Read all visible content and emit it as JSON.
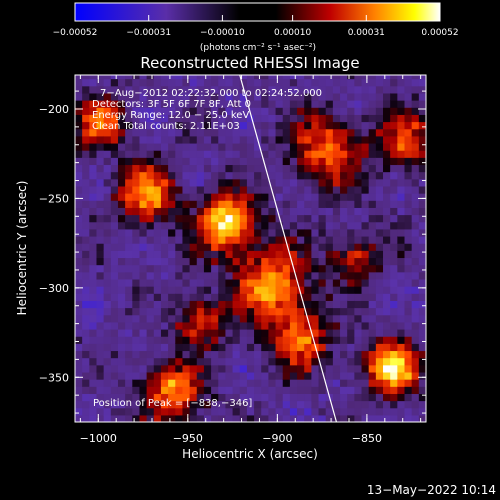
{
  "chart_data": {
    "type": "heatmap",
    "title": "Reconstructed RHESSI Image",
    "xlabel": "Heliocentric X (arcsec)",
    "ylabel": "Heliocentric Y (arcsec)",
    "xlim": [
      -1013,
      -817
    ],
    "ylim": [
      -375,
      -181
    ],
    "xticks": [
      -1000,
      -950,
      -900,
      -850
    ],
    "yticks": [
      -200,
      -250,
      -300,
      -350
    ],
    "xtick_labels": [
      "−1000",
      "−950",
      "−900",
      "−850"
    ],
    "ytick_labels": [
      "−200",
      "−250",
      "−300",
      "−350"
    ],
    "colorbar": {
      "min": -0.00052,
      "max": 0.00052,
      "ticks": [
        -0.00052,
        -0.00031,
        -0.0001,
        0.0001,
        0.00031,
        0.00052
      ],
      "tick_labels": [
        "−0.00052",
        "−0.00031",
        "−0.00010",
        "0.00010",
        "0.00031",
        "0.00052"
      ],
      "units_label": "(photons cm⁻² s⁻¹ asec⁻²)",
      "colors": [
        "#0000ff",
        "#5a2ea8",
        "#000000",
        "#c00000",
        "#ff8000",
        "#ffff00",
        "#ffffff"
      ]
    },
    "info_lines": [
      "7−Aug−2012 02:22:32.000 to 02:24:52.000",
      "Detectors: 3F 5F 6F 7F 8F, Att 0",
      "Energy Range: 12.0 − 25.0 keV",
      "Clean     Total counts: 2.11E+03"
    ],
    "peak_label": "Position of Peak = [−838,−346]",
    "peak": [
      -838,
      -346
    ],
    "limb_line": [
      [
        -921,
        -181
      ],
      [
        -867,
        -375
      ]
    ],
    "hot_spots": [
      {
        "x": -930,
        "y": -265,
        "amp": 1.0,
        "r": 12
      },
      {
        "x": -838,
        "y": -346,
        "amp": 1.0,
        "r": 11
      },
      {
        "x": -905,
        "y": -300,
        "amp": 0.85,
        "r": 14
      },
      {
        "x": -975,
        "y": -250,
        "amp": 0.75,
        "r": 12
      },
      {
        "x": -1000,
        "y": -210,
        "amp": 0.7,
        "r": 10
      },
      {
        "x": -875,
        "y": -225,
        "amp": 0.7,
        "r": 14
      },
      {
        "x": -960,
        "y": -360,
        "amp": 0.8,
        "r": 12
      },
      {
        "x": -890,
        "y": -330,
        "amp": 0.7,
        "r": 12
      },
      {
        "x": -830,
        "y": -220,
        "amp": 0.6,
        "r": 12
      },
      {
        "x": -945,
        "y": -320,
        "amp": 0.6,
        "r": 10
      },
      {
        "x": -860,
        "y": -285,
        "amp": 0.55,
        "r": 10
      }
    ]
  },
  "footer": {
    "timestamp": "13−May−2022 10:14"
  }
}
